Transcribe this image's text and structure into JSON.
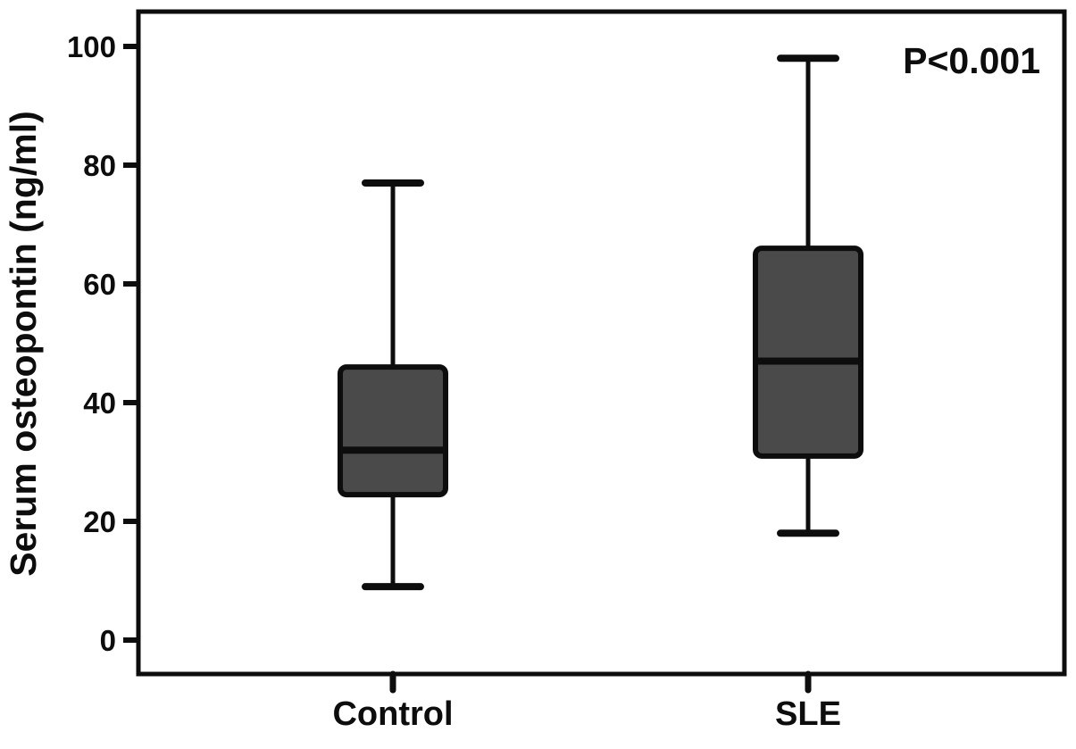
{
  "chart_data": {
    "type": "box",
    "title": "",
    "xlabel": "",
    "ylabel": "Serum osteopontin (ng/ml)",
    "annotation": "P<0.001",
    "ylim": [
      0,
      100
    ],
    "yticks": [
      0,
      20,
      40,
      60,
      80,
      100
    ],
    "categories": [
      "Control",
      "SLE"
    ],
    "series": [
      {
        "name": "Control",
        "min": 9,
        "q1": 24.5,
        "median": 32,
        "q3": 46,
        "max": 77
      },
      {
        "name": "SLE",
        "min": 18,
        "q1": 31,
        "median": 47,
        "q3": 66,
        "max": 98
      }
    ],
    "legend": null,
    "grid": false,
    "colors": {
      "box_fill": "#4a4a4a",
      "box_stroke": "#0d0d0d",
      "frame": "#0d0d0d",
      "text": "#0d0d0d",
      "background": "#ffffff"
    }
  }
}
